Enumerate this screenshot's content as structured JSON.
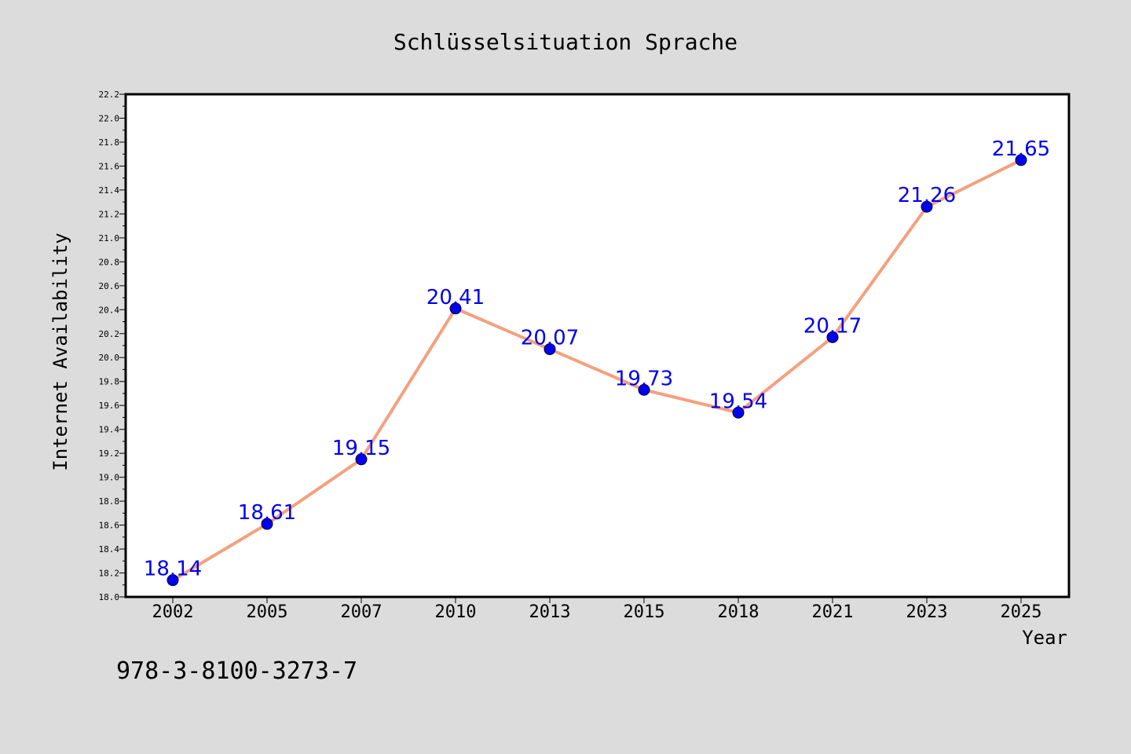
{
  "chart_data": {
    "type": "line",
    "title": "Schlüsselsituation Sprache",
    "xlabel": "Year",
    "ylabel": "Internet Availability",
    "categories": [
      "2002",
      "2005",
      "2007",
      "2010",
      "2013",
      "2015",
      "2018",
      "2021",
      "2023",
      "2025"
    ],
    "series": [
      {
        "values": [
          18.14,
          18.61,
          19.15,
          20.41,
          20.07,
          19.73,
          19.54,
          20.17,
          21.26,
          21.65
        ],
        "data_labels": [
          "18.14",
          "18.61",
          "19.15",
          "20.41",
          "20.07",
          "19.73",
          "19.54",
          "20.17",
          "21.26",
          "21.65"
        ],
        "line_color": "#f4a07e",
        "marker_color": "#0000ee",
        "label_color": "#0000ee"
      }
    ],
    "ylim": [
      18.0,
      22.2
    ],
    "y_major_ticks": [
      "18.0",
      "18.2",
      "18.4",
      "18.6",
      "18.8",
      "19.0",
      "19.2",
      "19.4",
      "19.6",
      "19.8",
      "20.0",
      "20.2",
      "20.4",
      "20.6",
      "20.8",
      "21.0",
      "21.2",
      "21.4",
      "21.6",
      "21.8",
      "22.0",
      "22.2"
    ],
    "grid": false,
    "legend": "none"
  },
  "footer": {
    "isbn": "978-3-8100-3273-7"
  },
  "colors": {
    "background": "#dcdcdc",
    "plot_background": "#ffffff",
    "axis": "#000000"
  }
}
